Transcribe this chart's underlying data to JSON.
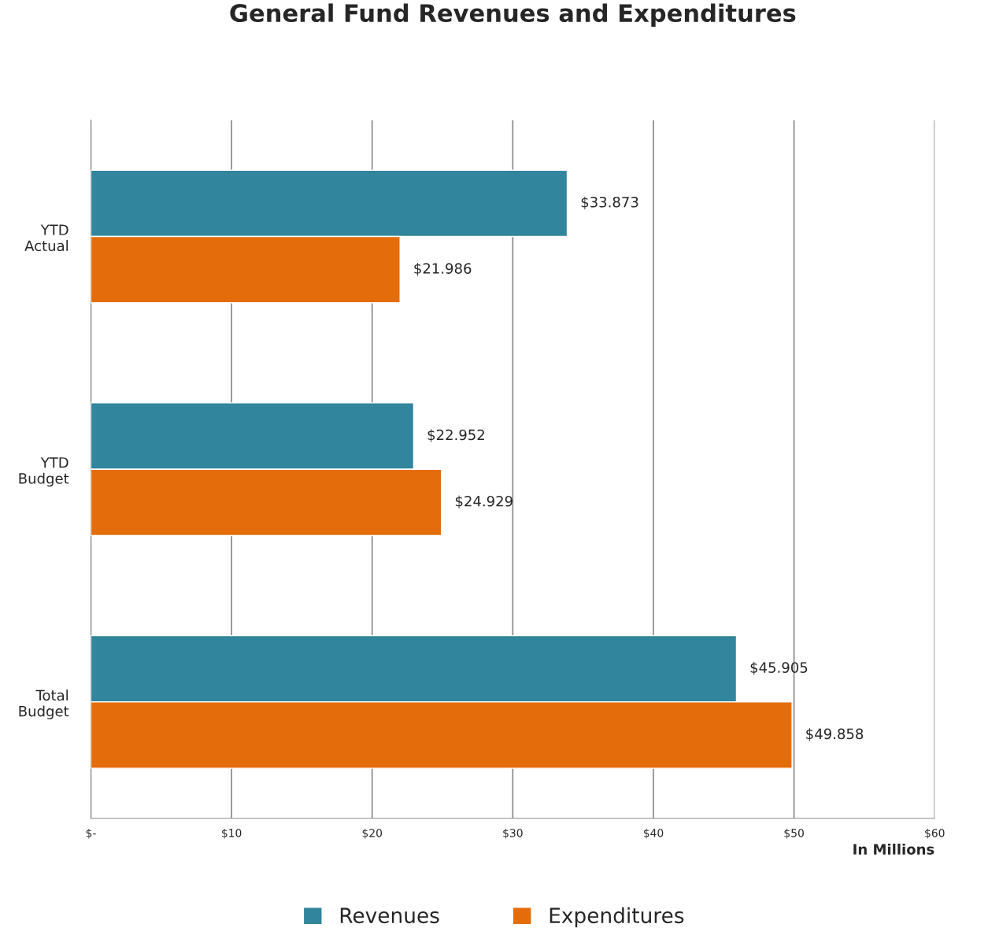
{
  "chart_data": {
    "type": "bar",
    "orientation": "horizontal",
    "title": "General Fund Revenues and Expenditures",
    "xlabel": "In Millions",
    "categories": [
      "YTD\nActual",
      "YTD\nBudget",
      "Total\nBudget"
    ],
    "series": [
      {
        "name": "Revenues",
        "color": "#31859c",
        "values": [
          33.873,
          22.952,
          45.905
        ],
        "value_labels": [
          "$33.873",
          "$22.952",
          "$45.905"
        ]
      },
      {
        "name": "Expenditures",
        "color": "#e46c0a",
        "values": [
          21.986,
          24.929,
          49.858
        ],
        "value_labels": [
          "$21.986",
          "$24.929",
          "$49.858"
        ]
      }
    ],
    "xlim": [
      0,
      60
    ],
    "xticks": [
      {
        "value": 0,
        "label": "$-"
      },
      {
        "value": 10,
        "label": "$10"
      },
      {
        "value": 20,
        "label": "$20"
      },
      {
        "value": 30,
        "label": "$30"
      },
      {
        "value": 40,
        "label": "$40"
      },
      {
        "value": 50,
        "label": "$50"
      },
      {
        "value": 60,
        "label": "$60"
      }
    ],
    "grid": "x",
    "legend": "bottom"
  }
}
